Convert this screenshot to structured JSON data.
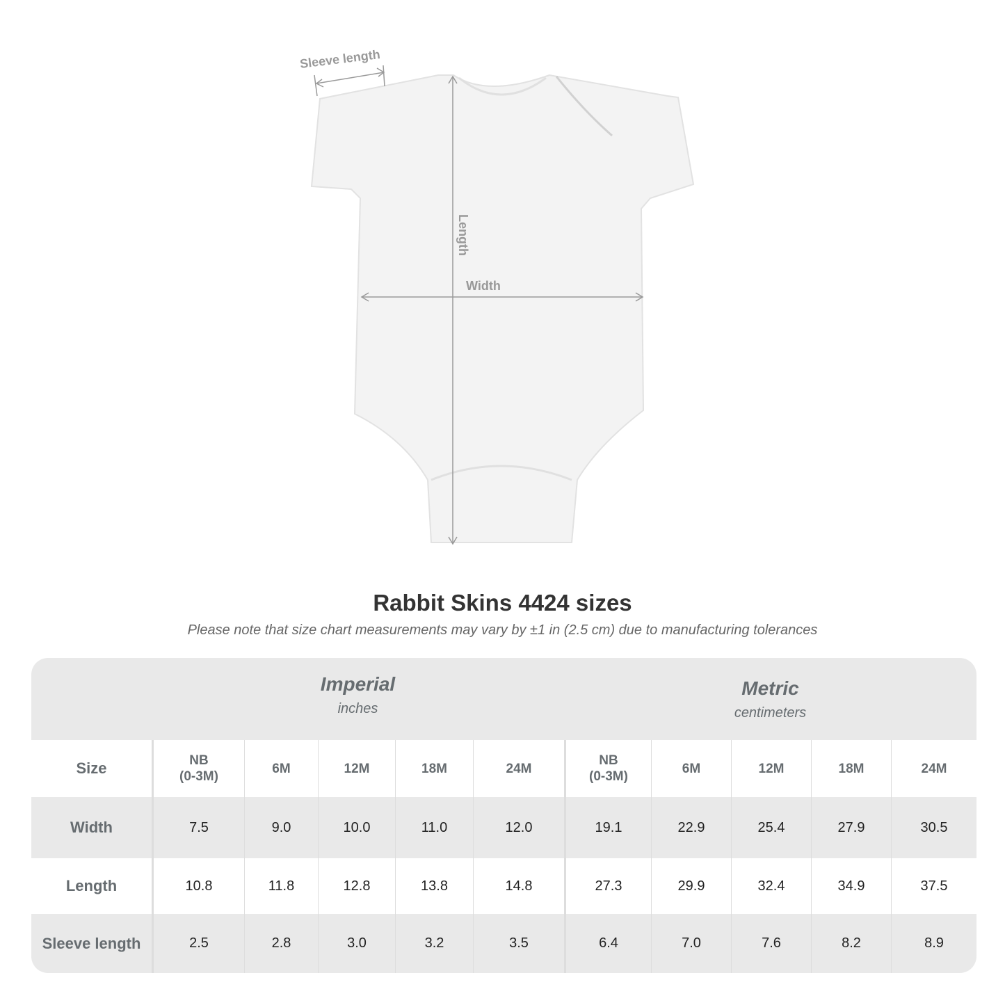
{
  "diagram": {
    "labels": {
      "sleeve": "Sleeve length",
      "length": "Length",
      "width": "Width"
    },
    "garment_color": "#f3f3f3",
    "annotation_color": "#999999"
  },
  "title": "Rabbit Skins 4424 sizes",
  "note": "Please note that size chart measurements may vary by ±1 in (2.5 cm) due to manufacturing tolerances",
  "table": {
    "imperial": {
      "name": "Imperial",
      "unit": "inches"
    },
    "metric": {
      "name": "Metric",
      "unit": "centimeters"
    },
    "size_label": "Size",
    "sizes": [
      "NB\n(0-3M)",
      "6M",
      "12M",
      "18M",
      "24M"
    ],
    "rows": [
      {
        "label": "Width",
        "imperial": [
          "7.5",
          "9.0",
          "10.0",
          "11.0",
          "12.0"
        ],
        "metric": [
          "19.1",
          "22.9",
          "25.4",
          "27.9",
          "30.5"
        ]
      },
      {
        "label": "Length",
        "imperial": [
          "10.8",
          "11.8",
          "12.8",
          "13.8",
          "14.8"
        ],
        "metric": [
          "27.3",
          "29.9",
          "32.4",
          "34.9",
          "37.5"
        ]
      },
      {
        "label": "Sleeve length",
        "imperial": [
          "2.5",
          "2.8",
          "3.0",
          "3.2",
          "3.5"
        ],
        "metric": [
          "6.4",
          "7.0",
          "7.6",
          "8.2",
          "8.9"
        ]
      }
    ]
  }
}
